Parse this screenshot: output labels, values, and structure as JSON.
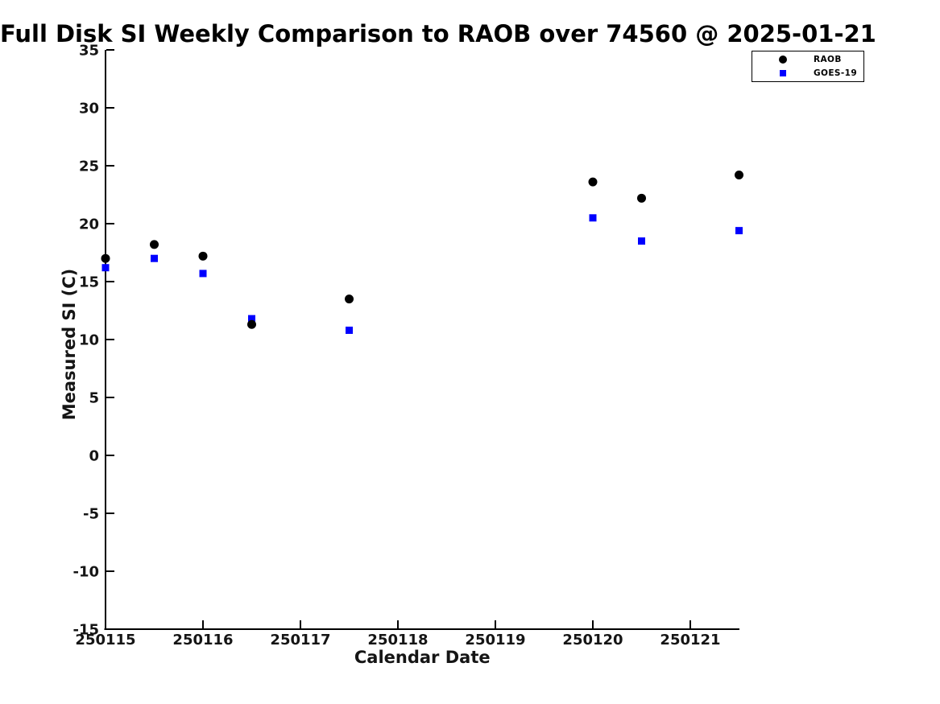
{
  "chart_data": {
    "type": "scatter",
    "title": "Full Disk SI Weekly Comparison to RAOB over 74560 @ 2025-01-21",
    "xlabel": "Calendar Date",
    "ylabel": "Measured SI (C)",
    "xlim": [
      250115,
      250121.5
    ],
    "ylim": [
      -15,
      35
    ],
    "x_ticks": [
      "250115",
      "250116",
      "250117",
      "250118",
      "250119",
      "250120",
      "250121"
    ],
    "y_ticks": [
      "35",
      "30",
      "25",
      "20",
      "15",
      "10",
      "5",
      "0",
      "-5",
      "-10",
      "-15"
    ],
    "grid": false,
    "legend_position": "top-right",
    "background_color": "#ffffff",
    "axis_color": "#000000",
    "series": [
      {
        "name": "GOES-19",
        "marker": "square",
        "color": "#0000ff",
        "points": [
          [
            250115.0,
            16.2
          ],
          [
            250115.5,
            17.0
          ],
          [
            250116.0,
            15.7
          ],
          [
            250116.5,
            11.8
          ],
          [
            250117.5,
            10.8
          ],
          [
            250120.0,
            20.5
          ],
          [
            250120.5,
            18.5
          ],
          [
            250121.5,
            19.4
          ]
        ]
      },
      {
        "name": "RAOB",
        "marker": "circle",
        "color": "#000000",
        "points": [
          [
            250115.0,
            17.0
          ],
          [
            250115.5,
            18.2
          ],
          [
            250116.0,
            17.2
          ],
          [
            250116.5,
            11.3
          ],
          [
            250117.5,
            13.5
          ],
          [
            250120.0,
            23.6
          ],
          [
            250120.5,
            22.2
          ],
          [
            250121.5,
            24.2
          ]
        ]
      }
    ],
    "legend": [
      {
        "label": "RAOB",
        "marker": "circle",
        "color": "#000000"
      },
      {
        "label": "GOES-19",
        "marker": "square",
        "color": "#0000ff"
      }
    ]
  }
}
